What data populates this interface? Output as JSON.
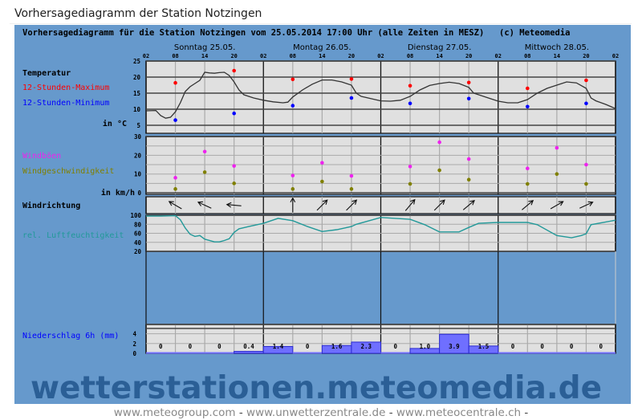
{
  "page": {
    "title": "Vorhersagediagramm der Station Notzingen",
    "footer_links": [
      "www.meteogroup.com",
      "www.unwetterzentrale.de",
      "www.meteocentrale.ch"
    ],
    "footer_sep": "-",
    "watermark": "wetterstationen.meteomedia.de"
  },
  "colors": {
    "frame": "#6699cc",
    "plot": "#e0e0e0",
    "temp_line": "#333333",
    "max": "#ff0000",
    "min": "#0000ff",
    "gust": "#ee22ee",
    "speed": "#808000",
    "humidity": "#229999",
    "precip_fill": "#6f6fff",
    "precip_edge": "#2a2ad0",
    "watermark": "#2b5f96"
  },
  "chart_data": {
    "type": "line",
    "title": "Vorhersagediagramm für die Station Notzingen vom 25.05.2014 17:00 Uhr (alle Zeiten in MESZ)",
    "copyright": "(c) Meteomedia",
    "days": [
      "Sonntag 25.05.",
      "Montag 26.05.",
      "Dienstag 27.05.",
      "Mittwoch 28.05."
    ],
    "hour_ticks": [
      "02",
      "08",
      "14",
      "20",
      "02",
      "08",
      "14",
      "20",
      "02",
      "08",
      "14",
      "20",
      "02",
      "08",
      "14",
      "20",
      "02"
    ],
    "temperature": {
      "label": "Temperatur",
      "unit_label": "in °C",
      "ylim": [
        2.5,
        25
      ],
      "yticks": [
        5,
        10,
        15,
        20,
        25
      ],
      "curve": [
        [
          0,
          9.5
        ],
        [
          2,
          9.6
        ],
        [
          3,
          8
        ],
        [
          4,
          7.2
        ],
        [
          5,
          7.5
        ],
        [
          6,
          9.2
        ],
        [
          7,
          12
        ],
        [
          8,
          15.5
        ],
        [
          9,
          17
        ],
        [
          10,
          18
        ],
        [
          11,
          19
        ],
        [
          12,
          21.5
        ],
        [
          13,
          21.3
        ],
        [
          14,
          21.2
        ],
        [
          15,
          21.4
        ],
        [
          16,
          21.5
        ],
        [
          17,
          20.5
        ],
        [
          18,
          18.5
        ],
        [
          19,
          16
        ],
        [
          20,
          14.5
        ],
        [
          22,
          13.5
        ],
        [
          24,
          12.8
        ],
        [
          26,
          12.3
        ],
        [
          28,
          12
        ],
        [
          29,
          12.2
        ],
        [
          30,
          13.8
        ],
        [
          32,
          16
        ],
        [
          34,
          17.8
        ],
        [
          36,
          19.1
        ],
        [
          38,
          19.1
        ],
        [
          40,
          18.5
        ],
        [
          42,
          17.5
        ],
        [
          43,
          15
        ],
        [
          44,
          14
        ],
        [
          48,
          12.6
        ],
        [
          50,
          12.5
        ],
        [
          52,
          12.8
        ],
        [
          54,
          14
        ],
        [
          56,
          16
        ],
        [
          58,
          17.4
        ],
        [
          60,
          18
        ],
        [
          62,
          18.4
        ],
        [
          64,
          18
        ],
        [
          66,
          16.8
        ],
        [
          67,
          15
        ],
        [
          70,
          13.5
        ],
        [
          72,
          12.5
        ],
        [
          74,
          12
        ],
        [
          76,
          12
        ],
        [
          78,
          13
        ],
        [
          80,
          15
        ],
        [
          82,
          16.5
        ],
        [
          84,
          17.5
        ],
        [
          86,
          18.5
        ],
        [
          88,
          18.2
        ],
        [
          90,
          16.5
        ],
        [
          91,
          13.5
        ],
        [
          92,
          12.6
        ],
        [
          94,
          11.5
        ],
        [
          96,
          10.2
        ]
      ],
      "max_label": "12-Stunden-Maximum",
      "max": [
        [
          6,
          18.2
        ],
        [
          18,
          22
        ],
        [
          30,
          19.3
        ],
        [
          42,
          19.4
        ],
        [
          54,
          17.3
        ],
        [
          66,
          18.3
        ],
        [
          78,
          16.5
        ],
        [
          90,
          19
        ]
      ],
      "min_label": "12-Stunden-Minimum",
      "min": [
        [
          6,
          6.6
        ],
        [
          18,
          8.7
        ],
        [
          30,
          11.1
        ],
        [
          42,
          13.5
        ],
        [
          54,
          11.8
        ],
        [
          66,
          13.3
        ],
        [
          78,
          10.8
        ],
        [
          90,
          11.8
        ]
      ]
    },
    "wind": {
      "gust_label": "Windböen",
      "speed_label": "Windgeschwindigkeit",
      "unit_label": "in km/h",
      "ylim": [
        0,
        30
      ],
      "yticks": [
        0,
        10,
        20,
        30
      ],
      "hours": [
        6,
        12,
        18,
        30,
        36,
        42,
        54,
        60,
        66,
        78,
        84,
        90
      ],
      "gusts": [
        8,
        22,
        14.3,
        9.2,
        16,
        9,
        14,
        27,
        18,
        13,
        24,
        15
      ],
      "speed": [
        2,
        11,
        5,
        2,
        6,
        2,
        4.7,
        12,
        7,
        4.7,
        10,
        4.7
      ]
    },
    "wind_direction": {
      "label": "Windrichtung",
      "hours": [
        6,
        12,
        18,
        30,
        36,
        42,
        54,
        60,
        66,
        78,
        84,
        90
      ],
      "arrow_heading_deg": [
        300,
        295,
        275,
        0,
        45,
        45,
        40,
        45,
        50,
        50,
        60,
        65
      ]
    },
    "humidity": {
      "label": "rel. Luftfeuchtigkeit",
      "ylim": [
        20,
        100
      ],
      "yticks": [
        20,
        40,
        60,
        80,
        100
      ],
      "curve": [
        [
          0,
          98
        ],
        [
          3,
          98
        ],
        [
          6,
          99
        ],
        [
          7,
          90
        ],
        [
          8,
          72
        ],
        [
          9,
          58
        ],
        [
          10,
          53
        ],
        [
          11,
          55
        ],
        [
          12,
          47
        ],
        [
          14,
          41
        ],
        [
          15,
          41
        ],
        [
          16,
          44
        ],
        [
          17,
          48
        ],
        [
          18,
          62
        ],
        [
          19,
          70
        ],
        [
          21,
          75
        ],
        [
          24,
          82
        ],
        [
          27,
          93
        ],
        [
          30,
          88
        ],
        [
          33,
          75
        ],
        [
          36,
          64
        ],
        [
          39,
          68
        ],
        [
          42,
          75
        ],
        [
          43,
          80
        ],
        [
          48,
          95
        ],
        [
          51,
          93
        ],
        [
          54,
          91
        ],
        [
          57,
          79
        ],
        [
          60,
          63
        ],
        [
          64,
          63
        ],
        [
          66,
          73
        ],
        [
          68,
          82
        ],
        [
          72,
          84
        ],
        [
          78,
          84
        ],
        [
          80,
          79
        ],
        [
          84,
          55
        ],
        [
          87,
          50
        ],
        [
          89,
          55
        ],
        [
          90,
          59
        ],
        [
          91,
          79
        ],
        [
          94,
          85
        ],
        [
          96,
          89
        ]
      ]
    },
    "precipitation": {
      "label": "Niederschlag 6h (mm)",
      "ylim": [
        0,
        6
      ],
      "yticks": [
        0,
        2,
        4
      ],
      "values": [
        0,
        0,
        0,
        0.4,
        1.4,
        0,
        1.6,
        2.3,
        0,
        1.0,
        3.9,
        1.5,
        0,
        0,
        0,
        0
      ],
      "value_labels": [
        "0",
        "0",
        "0",
        "0.4",
        "1.4",
        "0",
        "1.6",
        "2.3",
        "0",
        "1.0",
        "3.9",
        "1.5",
        "0",
        "0",
        "0",
        "0"
      ]
    }
  }
}
